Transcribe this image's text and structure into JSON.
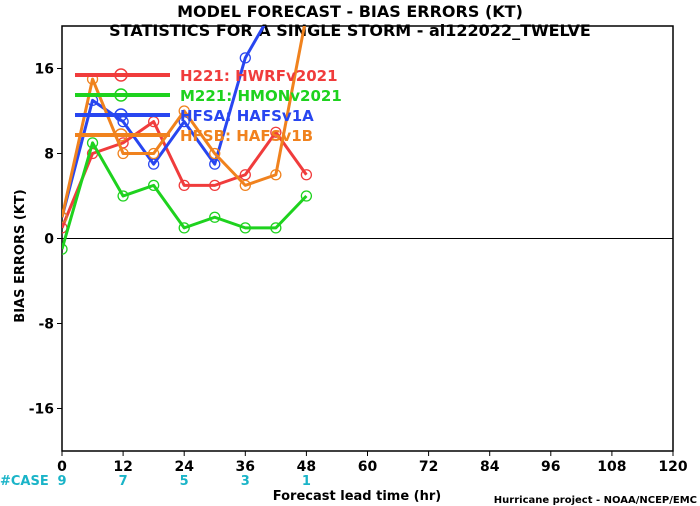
{
  "chart_data": {
    "type": "line",
    "title": "MODEL FORECAST - BIAS ERRORS (KT)",
    "subtitle": "STATISTICS FOR A SINGLE STORM - al122022_TWELVE",
    "xlabel": "Forecast lead time (hr)",
    "ylabel": "BIAS ERRORS (KT)",
    "xlim": [
      0,
      120
    ],
    "ylim": [
      -20,
      20
    ],
    "x_ticks": [
      0,
      12,
      24,
      36,
      48,
      60,
      72,
      84,
      96,
      108,
      120
    ],
    "y_ticks": [
      -16,
      -8,
      0,
      8,
      16
    ],
    "grid": false,
    "legend_position": "top-left",
    "case_label": "#CASE",
    "cases": [
      {
        "x": 0,
        "n": "9"
      },
      {
        "x": 12,
        "n": "7"
      },
      {
        "x": 24,
        "n": "5"
      },
      {
        "x": 36,
        "n": "3"
      },
      {
        "x": 48,
        "n": "1"
      }
    ],
    "credit": "Hurricane project - NOAA/NCEP/EMC",
    "series": [
      {
        "name": "H221: HWRFv2021",
        "color": "#f03c3c",
        "x": [
          0,
          6,
          12,
          18,
          24,
          30,
          36,
          42,
          48
        ],
        "y": [
          1,
          8,
          9,
          11,
          5,
          5,
          6,
          10,
          6
        ]
      },
      {
        "name": "M221: HMONv2021",
        "color": "#1ed21e",
        "x": [
          0,
          6,
          12,
          18,
          24,
          30,
          36,
          42,
          48
        ],
        "y": [
          -1,
          9,
          4,
          5,
          1,
          2,
          1,
          1,
          4
        ]
      },
      {
        "name": "HFSA: HAFSv1A",
        "color": "#2846f0",
        "x": [
          0,
          6,
          12,
          18,
          24,
          30,
          36,
          42
        ],
        "y": [
          2,
          13,
          11,
          7,
          11,
          7,
          17,
          22
        ]
      },
      {
        "name": "HFSB: HAFSv1B",
        "color": "#f0821e",
        "x": [
          0,
          6,
          12,
          18,
          24,
          30,
          36,
          42,
          48
        ],
        "y": [
          2,
          15,
          8,
          8,
          12,
          8,
          5,
          6,
          21
        ]
      }
    ]
  }
}
